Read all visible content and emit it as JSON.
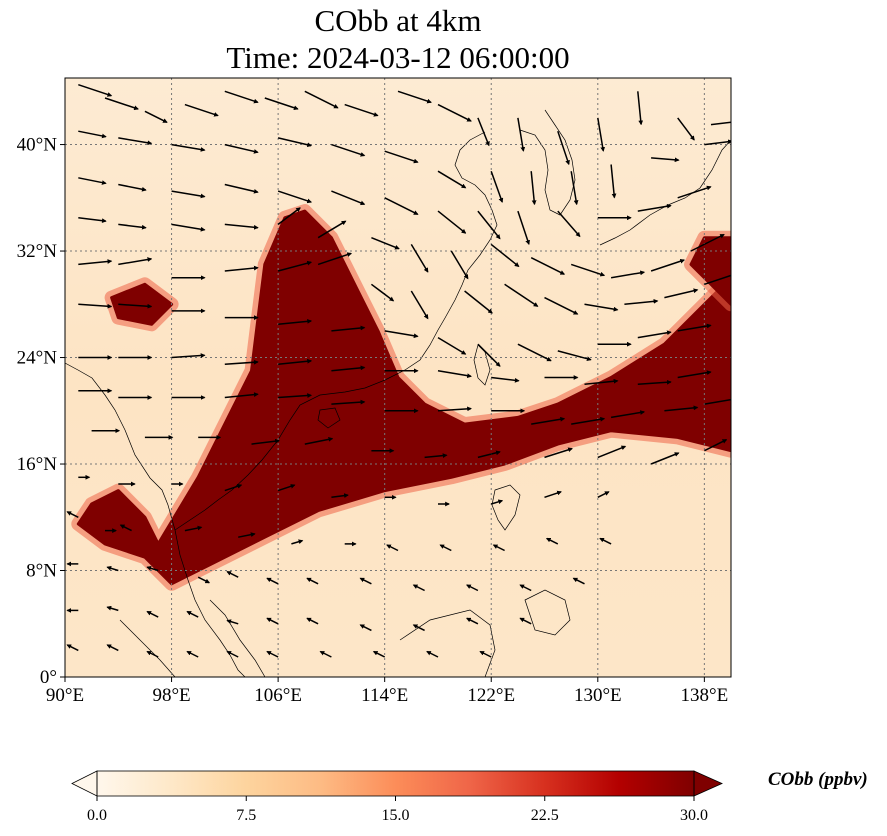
{
  "title": {
    "line1": "CObb at 4km",
    "line2": "Time: 2024-03-12 06:00:00"
  },
  "map": {
    "projection": "PlateCarree",
    "lon_range": [
      90,
      140
    ],
    "lat_range": [
      0,
      45
    ],
    "gridlines": true,
    "coastlines": true,
    "field_variable": "CObb",
    "colormap": "OrRd",
    "x_ticks": [
      {
        "value": 90,
        "label": "90°E"
      },
      {
        "value": 98,
        "label": "98°E"
      },
      {
        "value": 106,
        "label": "106°E"
      },
      {
        "value": 114,
        "label": "114°E"
      },
      {
        "value": 122,
        "label": "122°E"
      },
      {
        "value": 130,
        "label": "130°E"
      },
      {
        "value": 138,
        "label": "138°E"
      }
    ],
    "y_ticks": [
      {
        "value": 0,
        "label": "0°"
      },
      {
        "value": 8,
        "label": "8°N"
      },
      {
        "value": 16,
        "label": "16°N"
      },
      {
        "value": 24,
        "label": "24°N"
      },
      {
        "value": 32,
        "label": "32°N"
      },
      {
        "value": 40,
        "label": "40°N"
      }
    ],
    "plume_regions": [
      {
        "name": "indochina-plume",
        "polygon_lonlat": [
          [
            97,
            10
          ],
          [
            100,
            15
          ],
          [
            102,
            19
          ],
          [
            104,
            23
          ],
          [
            104.5,
            27
          ],
          [
            105,
            31
          ],
          [
            106.5,
            34.5
          ],
          [
            108,
            35
          ],
          [
            110,
            33
          ],
          [
            112,
            29
          ],
          [
            113.5,
            26
          ],
          [
            115,
            22.5
          ],
          [
            117,
            20.5
          ],
          [
            120,
            19
          ],
          [
            124,
            19.5
          ],
          [
            127,
            20.5
          ],
          [
            131,
            22.5
          ],
          [
            135,
            25
          ],
          [
            138,
            28
          ],
          [
            140,
            30
          ],
          [
            140,
            17
          ],
          [
            136,
            18
          ],
          [
            131,
            18.5
          ],
          [
            127,
            17.5
          ],
          [
            123,
            16
          ],
          [
            119,
            15
          ],
          [
            114,
            14
          ],
          [
            109,
            12.5
          ],
          [
            105,
            10.5
          ],
          [
            101,
            8.5
          ],
          [
            98,
            7
          ],
          [
            96,
            9
          ],
          [
            93,
            10
          ],
          [
            91,
            11.5
          ],
          [
            92,
            13
          ],
          [
            94,
            14
          ],
          [
            96,
            12
          ]
        ]
      },
      {
        "name": "japan-plume",
        "polygon_lonlat": [
          [
            138,
            33
          ],
          [
            140,
            33
          ],
          [
            140,
            28
          ],
          [
            137,
            31
          ]
        ]
      },
      {
        "name": "myanmar-patch",
        "polygon_lonlat": [
          [
            93.5,
            28.5
          ],
          [
            96,
            29.5
          ],
          [
            98,
            28
          ],
          [
            96.5,
            26.5
          ],
          [
            94,
            27
          ]
        ]
      }
    ],
    "wind_vectors_lonlat": [
      [
        91,
        44.5,
        3,
        -1
      ],
      [
        93,
        43.5,
        3,
        -1
      ],
      [
        96,
        42.5,
        2,
        -1
      ],
      [
        99,
        43,
        3,
        -1
      ],
      [
        102,
        44,
        3,
        -1
      ],
      [
        105,
        43.5,
        3,
        -1
      ],
      [
        108,
        44,
        3,
        -1.5
      ],
      [
        111,
        43,
        3,
        -1
      ],
      [
        115,
        44,
        3,
        -1
      ],
      [
        118,
        43,
        3,
        -1.5
      ],
      [
        121,
        42,
        1,
        -2.5
      ],
      [
        124,
        42,
        0.5,
        -3
      ],
      [
        127,
        41,
        1,
        -3
      ],
      [
        130,
        42,
        0.5,
        -3
      ],
      [
        133,
        44,
        0.3,
        -3
      ],
      [
        136,
        42,
        1.5,
        -2
      ],
      [
        138.5,
        41.5,
        2.5,
        0.3
      ],
      [
        91,
        41,
        2.5,
        -0.5
      ],
      [
        94,
        40.5,
        3,
        -0.5
      ],
      [
        98,
        40,
        3,
        -0.5
      ],
      [
        102,
        40,
        3,
        -0.7
      ],
      [
        106,
        40.5,
        3,
        -0.7
      ],
      [
        110,
        40,
        3,
        -1
      ],
      [
        114,
        39.5,
        3,
        -1
      ],
      [
        118,
        38,
        2.5,
        -1.5
      ],
      [
        122,
        38,
        1,
        -2.8
      ],
      [
        125,
        38,
        0.3,
        -3
      ],
      [
        128,
        38,
        0.5,
        -3
      ],
      [
        131,
        38.5,
        0.3,
        -3
      ],
      [
        134,
        39,
        2.5,
        -0.2
      ],
      [
        138,
        40,
        2.5,
        0.3
      ],
      [
        91,
        37.5,
        2.5,
        -0.5
      ],
      [
        94,
        37,
        2.5,
        -0.5
      ],
      [
        98,
        36.5,
        3,
        -0.5
      ],
      [
        102,
        37,
        3,
        -0.7
      ],
      [
        106,
        36.5,
        3,
        -1
      ],
      [
        110,
        36.5,
        3,
        -1.2
      ],
      [
        114,
        36,
        3,
        -1.5
      ],
      [
        118,
        35,
        2.5,
        -2
      ],
      [
        121,
        35,
        2,
        -2.5
      ],
      [
        124,
        35,
        1,
        -3
      ],
      [
        127,
        35,
        2,
        -2.3
      ],
      [
        130,
        34.5,
        3,
        0
      ],
      [
        133,
        35,
        3,
        0.5
      ],
      [
        136,
        36,
        3,
        1
      ],
      [
        91,
        34.5,
        2.5,
        -0.3
      ],
      [
        94,
        34,
        2.5,
        -0.3
      ],
      [
        98,
        34,
        3,
        -0.5
      ],
      [
        102,
        34,
        3,
        -0.3
      ],
      [
        106,
        34,
        2,
        1.5
      ],
      [
        109,
        33,
        2.5,
        1.5
      ],
      [
        113,
        33,
        2.5,
        -1
      ],
      [
        116,
        32.5,
        1.5,
        -2.5
      ],
      [
        119,
        32,
        1.5,
        -2.5
      ],
      [
        122,
        32.5,
        2.5,
        -2
      ],
      [
        125,
        31.5,
        3,
        -1.5
      ],
      [
        128,
        31,
        3,
        -1
      ],
      [
        131,
        30,
        3,
        0.5
      ],
      [
        134,
        30.5,
        3,
        1
      ],
      [
        137,
        32,
        3,
        1.5
      ],
      [
        91,
        31,
        3,
        0.3
      ],
      [
        94,
        31,
        3,
        0.5
      ],
      [
        98,
        30,
        3,
        0
      ],
      [
        102,
        30.5,
        3,
        0.3
      ],
      [
        106,
        30.5,
        3,
        0.8
      ],
      [
        109,
        31,
        3,
        1
      ],
      [
        113,
        29.5,
        2,
        -1.5
      ],
      [
        116,
        29,
        1.5,
        -2.5
      ],
      [
        120,
        29,
        2.5,
        -2
      ],
      [
        123,
        29.5,
        3,
        -2
      ],
      [
        126,
        28.5,
        3,
        -1.5
      ],
      [
        129,
        28,
        3,
        -0.5
      ],
      [
        132,
        28,
        3,
        0.3
      ],
      [
        135,
        28.5,
        3,
        0.7
      ],
      [
        138,
        29.5,
        3,
        1
      ],
      [
        91,
        28,
        3,
        -0.2
      ],
      [
        94,
        28,
        3,
        -0.2
      ],
      [
        98,
        27.5,
        3,
        0
      ],
      [
        102,
        27,
        3,
        0
      ],
      [
        106,
        26.5,
        3,
        0.3
      ],
      [
        110,
        26,
        3,
        0.3
      ],
      [
        114,
        26,
        3,
        -0.5
      ],
      [
        118,
        25.5,
        2.5,
        -1.5
      ],
      [
        121,
        25,
        2,
        -2
      ],
      [
        124,
        25,
        3,
        -1.5
      ],
      [
        127,
        24.5,
        3,
        -0.8
      ],
      [
        130,
        25,
        3,
        0
      ],
      [
        133,
        25.5,
        3,
        0.5
      ],
      [
        136,
        26,
        3,
        0.5
      ],
      [
        91,
        24,
        3,
        0
      ],
      [
        94,
        24,
        3,
        0
      ],
      [
        98,
        24,
        3,
        0.2
      ],
      [
        102,
        23.5,
        3,
        0.2
      ],
      [
        106,
        23.5,
        3,
        0.3
      ],
      [
        110,
        23,
        3,
        0.3
      ],
      [
        114,
        23,
        3,
        0
      ],
      [
        118,
        23,
        3,
        -0.5
      ],
      [
        122,
        22.5,
        2.5,
        -0.3
      ],
      [
        126,
        22.5,
        3,
        0
      ],
      [
        129,
        22,
        3,
        0.3
      ],
      [
        133,
        22,
        3,
        0.2
      ],
      [
        136,
        22.5,
        3,
        0.5
      ],
      [
        91,
        21.5,
        3,
        0
      ],
      [
        94,
        21,
        3,
        0
      ],
      [
        98,
        21,
        3,
        0
      ],
      [
        102,
        21,
        3,
        0.3
      ],
      [
        106,
        21,
        3,
        0.2
      ],
      [
        110,
        20.5,
        3,
        0.2
      ],
      [
        114,
        20,
        3,
        0
      ],
      [
        118,
        20,
        3,
        0.2
      ],
      [
        122,
        20,
        3,
        0
      ],
      [
        125,
        19,
        3,
        0.5
      ],
      [
        128,
        19,
        3,
        0.5
      ],
      [
        131,
        19.5,
        3,
        0.5
      ],
      [
        135,
        20,
        3,
        0.3
      ],
      [
        138,
        20.5,
        3,
        0.5
      ],
      [
        92,
        18.5,
        2.5,
        0
      ],
      [
        96,
        18,
        2.5,
        0
      ],
      [
        100,
        18,
        2,
        0
      ],
      [
        104,
        17.5,
        2.5,
        0.3
      ],
      [
        108,
        17.5,
        2.5,
        0.5
      ],
      [
        113,
        17,
        2,
        0
      ],
      [
        117,
        16.5,
        2,
        0.2
      ],
      [
        121,
        16.5,
        2,
        0.5
      ],
      [
        126,
        16.5,
        2.5,
        0.8
      ],
      [
        130,
        16.5,
        2.5,
        1
      ],
      [
        134,
        16,
        2.5,
        1
      ],
      [
        138,
        17,
        2,
        1
      ],
      [
        91,
        15,
        1,
        0
      ],
      [
        94,
        14.5,
        1.5,
        0
      ],
      [
        98,
        14.5,
        1,
        0
      ],
      [
        102,
        14,
        1.5,
        0.5
      ],
      [
        106,
        14,
        1.5,
        0.5
      ],
      [
        110,
        13.5,
        1.5,
        0.2
      ],
      [
        114,
        13.5,
        1,
        0
      ],
      [
        118,
        13,
        1,
        0
      ],
      [
        122,
        13,
        1,
        0.3
      ],
      [
        126,
        13.5,
        1.5,
        0.5
      ],
      [
        130,
        13.5,
        1,
        0.5
      ],
      [
        91,
        12,
        -1,
        0.5
      ],
      [
        93,
        11,
        1,
        0
      ],
      [
        95,
        11,
        -1,
        0.5
      ],
      [
        99,
        11,
        1.5,
        0.3
      ],
      [
        103,
        10.5,
        1.5,
        0.3
      ],
      [
        107,
        10,
        1,
        0.3
      ],
      [
        111,
        10,
        1,
        0
      ],
      [
        115,
        9.5,
        -1,
        0.5
      ],
      [
        119,
        9.5,
        -1,
        0.5
      ],
      [
        123,
        9.5,
        -1,
        0.5
      ],
      [
        127,
        10,
        -1,
        0.5
      ],
      [
        131,
        10,
        -1,
        0.5
      ],
      [
        91,
        8.5,
        -1,
        0
      ],
      [
        94,
        8,
        -1,
        0.3
      ],
      [
        97,
        8,
        -1,
        0.3
      ],
      [
        100,
        7.5,
        1,
        -0.5
      ],
      [
        103,
        7.5,
        -1,
        0.5
      ],
      [
        106,
        7,
        -1,
        0.5
      ],
      [
        109,
        7,
        -1,
        0.5
      ],
      [
        113,
        7,
        -1,
        0.5
      ],
      [
        117,
        6.5,
        -1,
        0.5
      ],
      [
        121,
        6.5,
        -1,
        0.5
      ],
      [
        125,
        6.5,
        -1,
        0.5
      ],
      [
        129,
        7,
        -1,
        0.5
      ],
      [
        91,
        5,
        -1,
        0
      ],
      [
        94,
        5,
        -1,
        0.3
      ],
      [
        97,
        4.5,
        -1,
        0.5
      ],
      [
        100,
        4.5,
        -1,
        0.5
      ],
      [
        103,
        4,
        -1,
        0.3
      ],
      [
        106,
        4,
        -1,
        0.5
      ],
      [
        109,
        4,
        -1,
        0.5
      ],
      [
        113,
        3.5,
        -1,
        0.5
      ],
      [
        117,
        3.5,
        -1,
        0.5
      ],
      [
        121,
        4,
        -1,
        0.5
      ],
      [
        125,
        4,
        -1,
        0.5
      ],
      [
        91,
        2,
        -1,
        0.5
      ],
      [
        94,
        2,
        -1,
        0.5
      ],
      [
        97,
        1.5,
        -1,
        0.5
      ],
      [
        100,
        1.5,
        -1,
        0.5
      ],
      [
        103,
        1.5,
        -1,
        0.5
      ],
      [
        106,
        1.5,
        -1,
        0.5
      ],
      [
        110,
        1.5,
        -1,
        0.5
      ],
      [
        114,
        1.5,
        -1,
        0.5
      ],
      [
        118,
        1.5,
        -1,
        0.5
      ],
      [
        122,
        1.5,
        -1,
        0.5
      ]
    ]
  },
  "colorbar": {
    "label": "CObb (ppbv)",
    "min": 0.0,
    "max": 30.0,
    "extend": "both",
    "ticks": [
      "0.0",
      "7.5",
      "15.0",
      "22.5",
      "30.0"
    ],
    "colors": [
      "#fff7ec",
      "#fee8c8",
      "#fdd49e",
      "#fdbb84",
      "#fc8d59",
      "#ef6548",
      "#d7301f",
      "#b30000",
      "#7f0000"
    ]
  }
}
